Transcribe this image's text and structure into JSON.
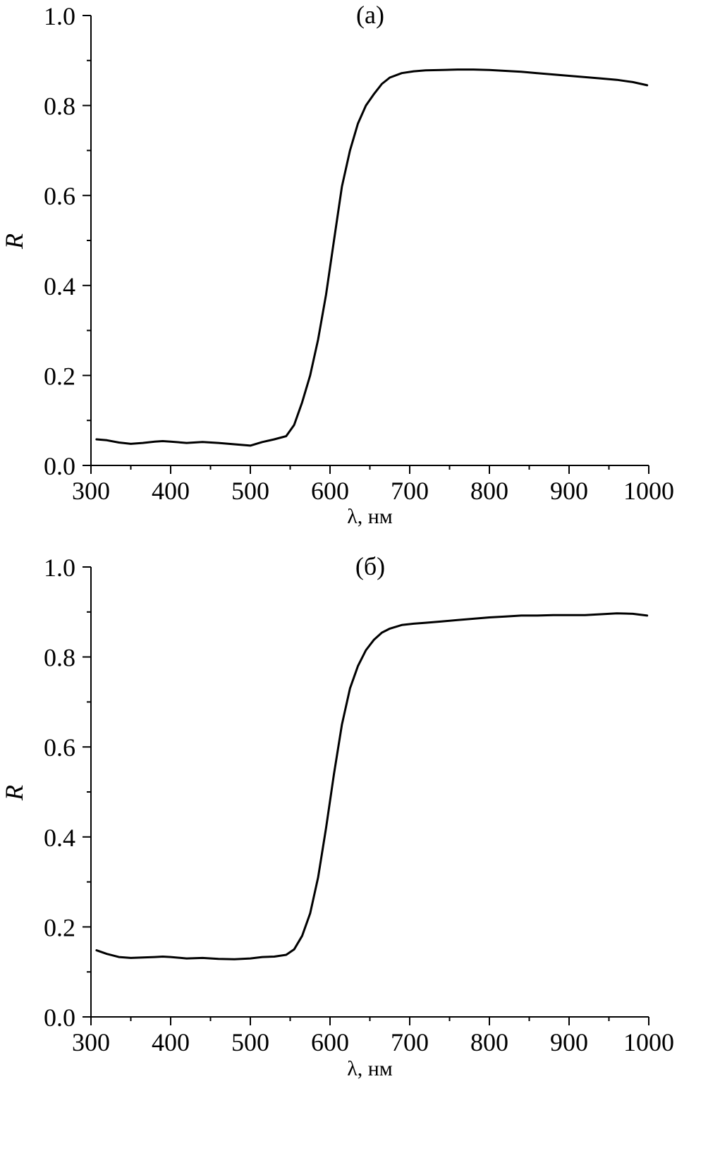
{
  "chart_data": [
    {
      "type": "line",
      "panel_label": "(a)",
      "xlabel": "λ, нм",
      "ylabel": "R",
      "xlim": [
        300,
        1000
      ],
      "ylim": [
        0.0,
        1.0
      ],
      "x_ticks": [
        300,
        400,
        500,
        600,
        700,
        800,
        900,
        1000
      ],
      "x_tick_labels": [
        "300",
        "400",
        "500",
        "600",
        "700",
        "800",
        "900",
        "1000"
      ],
      "y_ticks": [
        0.0,
        0.2,
        0.4,
        0.6,
        0.8,
        1.0
      ],
      "y_tick_labels": [
        "0.0",
        "0.2",
        "0.4",
        "0.6",
        "0.8",
        "1.0"
      ],
      "grid": false,
      "series": [
        {
          "x": [
            307,
            320,
            335,
            350,
            365,
            380,
            390,
            400,
            420,
            440,
            460,
            480,
            500,
            515,
            530,
            545,
            555,
            565,
            575,
            585,
            595,
            605,
            615,
            625,
            635,
            645,
            655,
            665,
            675,
            690,
            705,
            720,
            740,
            760,
            780,
            800,
            820,
            840,
            860,
            880,
            900,
            920,
            940,
            960,
            980,
            998
          ],
          "y": [
            0.058,
            0.056,
            0.051,
            0.048,
            0.05,
            0.053,
            0.054,
            0.053,
            0.05,
            0.052,
            0.05,
            0.047,
            0.044,
            0.052,
            0.058,
            0.065,
            0.09,
            0.14,
            0.2,
            0.28,
            0.38,
            0.5,
            0.62,
            0.7,
            0.76,
            0.8,
            0.825,
            0.848,
            0.862,
            0.872,
            0.876,
            0.878,
            0.879,
            0.88,
            0.88,
            0.879,
            0.877,
            0.875,
            0.872,
            0.869,
            0.866,
            0.863,
            0.86,
            0.857,
            0.852,
            0.845
          ]
        }
      ]
    },
    {
      "type": "line",
      "panel_label": "(б)",
      "xlabel": "λ, нм",
      "ylabel": "R",
      "xlim": [
        300,
        1000
      ],
      "ylim": [
        0.0,
        1.0
      ],
      "x_ticks": [
        300,
        400,
        500,
        600,
        700,
        800,
        900,
        1000
      ],
      "x_tick_labels": [
        "300",
        "400",
        "500",
        "600",
        "700",
        "800",
        "900",
        "1000"
      ],
      "y_ticks": [
        0.0,
        0.2,
        0.4,
        0.6,
        0.8,
        1.0
      ],
      "y_tick_labels": [
        "0.0",
        "0.2",
        "0.4",
        "0.6",
        "0.8",
        "1.0"
      ],
      "grid": false,
      "series": [
        {
          "x": [
            307,
            320,
            335,
            350,
            365,
            380,
            390,
            400,
            420,
            440,
            460,
            480,
            500,
            515,
            530,
            545,
            555,
            565,
            575,
            585,
            595,
            605,
            615,
            625,
            635,
            645,
            655,
            665,
            675,
            690,
            705,
            720,
            740,
            760,
            780,
            800,
            820,
            840,
            860,
            880,
            900,
            920,
            940,
            960,
            980,
            998
          ],
          "y": [
            0.148,
            0.14,
            0.133,
            0.131,
            0.132,
            0.133,
            0.134,
            0.133,
            0.13,
            0.131,
            0.129,
            0.128,
            0.13,
            0.133,
            0.134,
            0.138,
            0.15,
            0.18,
            0.23,
            0.31,
            0.42,
            0.54,
            0.65,
            0.73,
            0.78,
            0.815,
            0.838,
            0.854,
            0.863,
            0.871,
            0.874,
            0.876,
            0.879,
            0.882,
            0.885,
            0.888,
            0.89,
            0.892,
            0.892,
            0.893,
            0.893,
            0.893,
            0.895,
            0.897,
            0.896,
            0.892
          ]
        }
      ]
    }
  ]
}
